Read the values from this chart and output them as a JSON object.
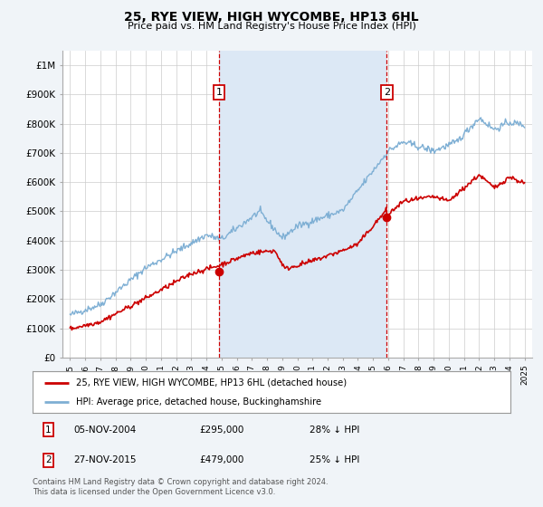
{
  "title": "25, RYE VIEW, HIGH WYCOMBE, HP13 6HL",
  "subtitle": "Price paid vs. HM Land Registry's House Price Index (HPI)",
  "background_color": "#f0f4f8",
  "plot_bg_color": "#ffffff",
  "grid_color": "#cccccc",
  "red_line_color": "#cc0000",
  "blue_line_color": "#7eafd4",
  "shade_color": "#dce8f5",
  "marker_color": "#cc0000",
  "dashed_line_color": "#cc0000",
  "legend_label_red": "25, RYE VIEW, HIGH WYCOMBE, HP13 6HL (detached house)",
  "legend_label_blue": "HPI: Average price, detached house, Buckinghamshire",
  "transaction1_date": "05-NOV-2004",
  "transaction1_price": 295000,
  "transaction1_pct": "28% ↓ HPI",
  "transaction2_date": "27-NOV-2015",
  "transaction2_price": 479000,
  "transaction2_pct": "25% ↓ HPI",
  "transaction1_x": 2004.84,
  "transaction2_x": 2015.9,
  "footer": "Contains HM Land Registry data © Crown copyright and database right 2024.\nThis data is licensed under the Open Government Licence v3.0.",
  "ylim": [
    0,
    1050000
  ],
  "yticks": [
    0,
    100000,
    200000,
    300000,
    400000,
    500000,
    600000,
    700000,
    800000,
    900000,
    1000000
  ],
  "ytick_labels": [
    "£0",
    "£100K",
    "£200K",
    "£300K",
    "£400K",
    "£500K",
    "£600K",
    "£700K",
    "£800K",
    "£900K",
    "£1M"
  ],
  "xlim_start": 1994.5,
  "xlim_end": 2025.5
}
